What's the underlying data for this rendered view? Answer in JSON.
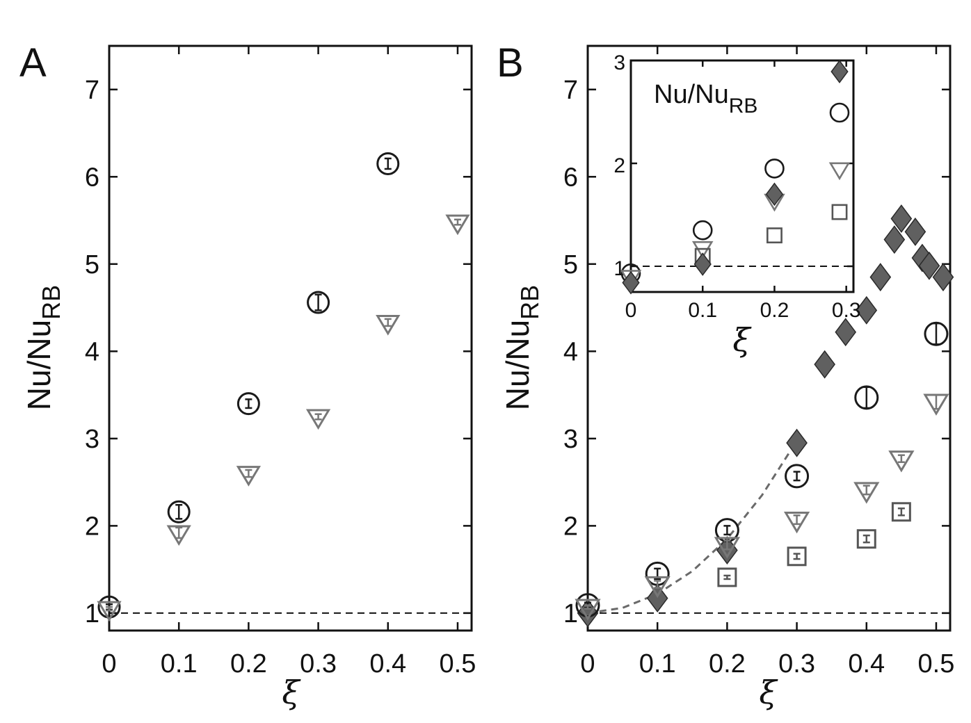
{
  "chart_data": [
    {
      "type": "scatter",
      "panel_label": "A",
      "xlabel": "ξ",
      "ylabel_main": "Nu/Nu",
      "ylabel_sub": "RB",
      "xlim": [
        0,
        0.52
      ],
      "ylim": [
        0.8,
        7.5
      ],
      "xticks": [
        0,
        0.1,
        0.2,
        0.3,
        0.4,
        0.5
      ],
      "xtick_labels": [
        "0",
        "0.1",
        "0.2",
        "0.3",
        "0.4",
        "0.5"
      ],
      "yticks": [
        1,
        2,
        3,
        4,
        5,
        6,
        7
      ],
      "ytick_labels": [
        "1",
        "2",
        "3",
        "4",
        "5",
        "6",
        "7"
      ],
      "reference_line": 1,
      "series": [
        {
          "marker": "circle",
          "color": "#1a1a1a",
          "x": [
            0,
            0.1,
            0.2,
            0.3,
            0.4
          ],
          "y": [
            1.07,
            2.16,
            3.4,
            4.56,
            6.15
          ],
          "err": [
            0.03,
            0.08,
            0.05,
            0.09,
            0.06
          ]
        },
        {
          "marker": "triangle-down",
          "color": "#777777",
          "x": [
            0,
            0.1,
            0.2,
            0.3,
            0.4,
            0.5
          ],
          "y": [
            1.05,
            1.92,
            2.6,
            3.25,
            4.33,
            5.48
          ],
          "err": [
            0.02,
            0.06,
            0.04,
            0.03,
            0.04,
            0.03
          ]
        }
      ]
    },
    {
      "type": "scatter",
      "panel_label": "B",
      "xlabel": "ξ",
      "ylabel_main": "Nu/Nu",
      "ylabel_sub": "RB",
      "xlim": [
        0,
        0.52
      ],
      "ylim": [
        0.8,
        7.5
      ],
      "xticks": [
        0,
        0.1,
        0.2,
        0.3,
        0.4,
        0.5
      ],
      "xtick_labels": [
        "0",
        "0.1",
        "0.2",
        "0.3",
        "0.4",
        "0.5"
      ],
      "yticks": [
        1,
        2,
        3,
        4,
        5,
        6,
        7
      ],
      "ytick_labels": [
        "1",
        "2",
        "3",
        "4",
        "5",
        "6",
        "7"
      ],
      "reference_line": 1,
      "fit_curve": {
        "x": [
          0,
          0.05,
          0.1,
          0.15,
          0.2,
          0.25,
          0.29
        ],
        "y": [
          1.0,
          1.06,
          1.22,
          1.48,
          1.85,
          2.35,
          2.85
        ]
      },
      "series": [
        {
          "marker": "diamond",
          "color": "#606060",
          "x": [
            0,
            0.1,
            0.2,
            0.3,
            0.34,
            0.37,
            0.4,
            0.42,
            0.44,
            0.45,
            0.47,
            0.48,
            0.49,
            0.51
          ],
          "y": [
            1.0,
            1.17,
            1.72,
            2.95,
            3.85,
            4.22,
            4.47,
            4.85,
            5.28,
            5.52,
            5.37,
            5.07,
            4.98,
            4.85
          ]
        },
        {
          "marker": "circle",
          "color": "#1a1a1a",
          "x": [
            0,
            0.1,
            0.2,
            0.3,
            0.4,
            0.5
          ],
          "y": [
            1.09,
            1.45,
            1.95,
            2.57,
            3.47,
            4.2
          ],
          "err": [
            0.03,
            0.06,
            0.05,
            0.05,
            0.12,
            0.12
          ]
        },
        {
          "marker": "triangle-down",
          "color": "#777777",
          "x": [
            0,
            0.1,
            0.2,
            0.3,
            0.4,
            0.45,
            0.5
          ],
          "y": [
            1.07,
            1.33,
            1.78,
            2.07,
            2.41,
            2.77,
            3.42
          ],
          "err": [
            0.02,
            0.04,
            0.05,
            0.05,
            0.05,
            0.04,
            0.08
          ]
        },
        {
          "marker": "square",
          "color": "#555555",
          "x": [
            0.2,
            0.3,
            0.4,
            0.45
          ],
          "y": [
            1.41,
            1.65,
            1.85,
            2.16
          ],
          "err": [
            0.02,
            0.03,
            0.04,
            0.04
          ]
        }
      ],
      "inset": {
        "ylabel_main": "Nu/Nu",
        "ylabel_sub": "RB",
        "xlabel": "ξ",
        "xlim": [
          0,
          0.31
        ],
        "ylim": [
          0.75,
          3.0
        ],
        "xticks": [
          0,
          0.1,
          0.2,
          0.3
        ],
        "xtick_labels": [
          "0",
          "0.1",
          "0.2",
          "0.3"
        ],
        "yticks": [
          1,
          2,
          3
        ],
        "ytick_labels": [
          "1",
          "2",
          "3"
        ],
        "reference_line": 1,
        "series": [
          {
            "marker": "circle",
            "color": "#1a1a1a",
            "x": [
              0,
              0.1,
              0.2
            ],
            "y": [
              0.93,
              1.35,
              1.95
            ]
          },
          {
            "marker": "triangle-down",
            "color": "#777777",
            "x": [
              0,
              0.1,
              0.2
            ],
            "y": [
              0.9,
              1.18,
              1.64
            ]
          },
          {
            "marker": "square",
            "color": "#555555",
            "x": [
              0.1,
              0.2
            ],
            "y": [
              1.1,
              1.3
            ]
          },
          {
            "marker": "diamond",
            "color": "#606060",
            "x": [
              0,
              0.1,
              0.2
            ],
            "y": [
              0.84,
              1.02,
              1.7
            ]
          }
        ],
        "legend_markers": [
          {
            "marker": "diamond",
            "color": "#606060"
          },
          {
            "marker": "circle",
            "color": "#1a1a1a"
          },
          {
            "marker": "triangle-down",
            "color": "#777777"
          },
          {
            "marker": "square",
            "color": "#555555"
          }
        ]
      }
    }
  ]
}
